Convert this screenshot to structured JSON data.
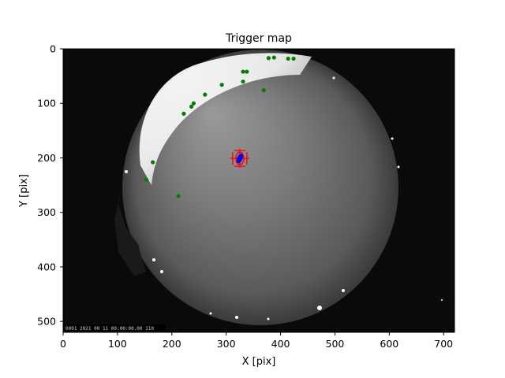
{
  "chart_data": {
    "type": "scatter",
    "title": "Trigger map",
    "xlabel": "X [pix]",
    "ylabel": "Y [pix]",
    "xlim": [
      0,
      720
    ],
    "ylim": [
      520,
      0
    ],
    "y_inverted": true,
    "x_ticks": [
      "0",
      "100",
      "200",
      "300",
      "400",
      "500",
      "600",
      "700"
    ],
    "y_ticks": [
      "0",
      "100",
      "200",
      "300",
      "400",
      "500"
    ],
    "background": "all-sky fisheye camera image",
    "timestamp_overlay": "0001 2021 00 11 00:00:00.00 110",
    "series": [
      {
        "color": "#008000",
        "marker": "circle",
        "points": [
          {
            "x": 378,
            "y": 17
          },
          {
            "x": 388,
            "y": 16
          },
          {
            "x": 414,
            "y": 18
          },
          {
            "x": 424,
            "y": 18
          },
          {
            "x": 331,
            "y": 42
          },
          {
            "x": 338,
            "y": 42
          },
          {
            "x": 331,
            "y": 60
          },
          {
            "x": 292,
            "y": 66
          },
          {
            "x": 369,
            "y": 76
          },
          {
            "x": 261,
            "y": 84
          },
          {
            "x": 240,
            "y": 100
          },
          {
            "x": 236,
            "y": 106
          },
          {
            "x": 222,
            "y": 119
          },
          {
            "x": 165,
            "y": 208
          },
          {
            "x": 153,
            "y": 240
          },
          {
            "x": 212,
            "y": 270
          }
        ]
      }
    ],
    "center_point": {
      "x": 325,
      "y": 201,
      "color": "#0000ff"
    },
    "center_marker_color": "#ff0000"
  }
}
